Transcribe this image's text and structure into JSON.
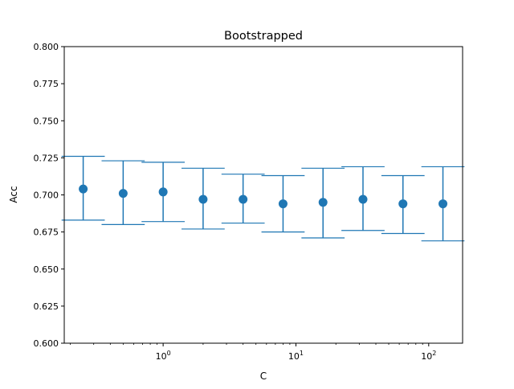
{
  "chart_data": {
    "type": "scatter",
    "title": "Bootstrapped",
    "xlabel": "C",
    "ylabel": "Acc",
    "x_scale": "log",
    "x_range": [
      0.18,
      180
    ],
    "ylim": [
      0.6,
      0.8
    ],
    "y_ticks": [
      "0.600",
      "0.625",
      "0.650",
      "0.675",
      "0.700",
      "0.725",
      "0.750",
      "0.775",
      "0.800"
    ],
    "x_ticks": [
      {
        "base": "10",
        "exp": "0"
      },
      {
        "base": "10",
        "exp": "1"
      },
      {
        "base": "10",
        "exp": "2"
      }
    ],
    "grid": false,
    "color": "#1f77b4",
    "series": [
      {
        "x": [
          0.25,
          0.5,
          1,
          2,
          4,
          8,
          16,
          32,
          64,
          128
        ],
        "y": [
          0.704,
          0.701,
          0.702,
          0.697,
          0.697,
          0.694,
          0.695,
          0.697,
          0.694,
          0.694
        ],
        "err_low": [
          0.683,
          0.68,
          0.682,
          0.677,
          0.681,
          0.675,
          0.671,
          0.676,
          0.674,
          0.669
        ],
        "err_high": [
          0.726,
          0.723,
          0.722,
          0.718,
          0.714,
          0.713,
          0.718,
          0.719,
          0.713,
          0.719
        ]
      }
    ]
  }
}
